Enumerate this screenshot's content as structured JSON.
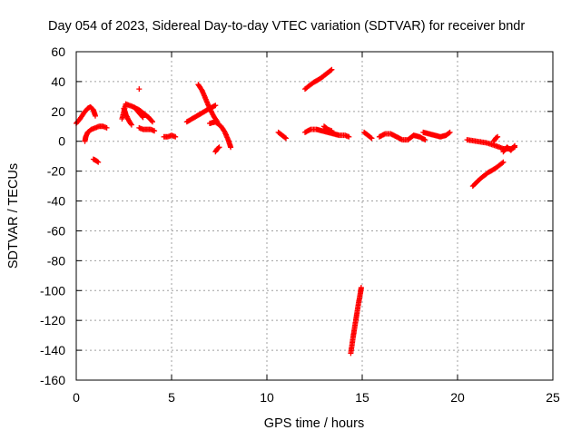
{
  "chart_data": {
    "type": "scatter",
    "title": "Day 054 of 2023, Sidereal Day-to-day VTEC variation (SDTVAR) for receiver bndr",
    "xlabel": "GPS time / hours",
    "ylabel": "SDTVAR / TECUs",
    "xlim": [
      0,
      25
    ],
    "ylim": [
      -160,
      60
    ],
    "xticks": [
      "0",
      "5",
      "10",
      "15",
      "20",
      "25"
    ],
    "yticks": [
      "60",
      "40",
      "20",
      "0",
      "-20",
      "-40",
      "-60",
      "-80",
      "-100",
      "-120",
      "-140",
      "-160"
    ],
    "grid": true,
    "legend": "none",
    "series_color": "#ff0000",
    "series": [
      {
        "x": [
          0.0,
          0.2,
          0.4,
          0.6,
          0.75,
          0.9,
          1.0
        ],
        "y": [
          12,
          15,
          19,
          22,
          23,
          21,
          17
        ]
      },
      {
        "x": [
          0.45,
          0.5,
          0.6,
          0.8,
          1.0,
          1.2,
          1.4,
          1.6
        ],
        "y": [
          0,
          3,
          6,
          8,
          9,
          10,
          10,
          9
        ]
      },
      {
        "x": [
          0.9,
          1.05,
          1.15
        ],
        "y": [
          -12,
          -13,
          -14
        ]
      },
      {
        "x": [
          2.4,
          2.6,
          2.8,
          3.0,
          3.3,
          3.6,
          3.8,
          4.0
        ],
        "y": [
          15,
          25,
          24,
          23,
          21,
          18,
          16,
          13
        ]
      },
      {
        "x": [
          2.5,
          2.6,
          2.75,
          2.9
        ],
        "y": [
          22,
          18,
          14,
          11
        ]
      },
      {
        "x": [
          3.1,
          3.3,
          3.5
        ],
        "y": [
          22,
          19,
          16
        ]
      },
      {
        "x": [
          3.3
        ],
        "y": [
          35
        ]
      },
      {
        "x": [
          3.3,
          3.5,
          3.7,
          3.9,
          4.1
        ],
        "y": [
          9,
          8,
          8,
          8,
          7
        ]
      },
      {
        "x": [
          4.6,
          4.8,
          5.0,
          5.2
        ],
        "y": [
          3,
          3,
          4,
          3
        ]
      },
      {
        "x": [
          5.8,
          6.2,
          6.6,
          7.0,
          7.3
        ],
        "y": [
          13,
          16,
          19,
          22,
          24
        ]
      },
      {
        "x": [
          6.4,
          6.6,
          6.8,
          7.0,
          7.2,
          7.4
        ],
        "y": [
          38,
          34,
          28,
          22,
          17,
          13
        ]
      },
      {
        "x": [
          7.0,
          7.3,
          7.6,
          7.8,
          8.0,
          8.1
        ],
        "y": [
          12,
          13,
          10,
          6,
          0,
          -4
        ]
      },
      {
        "x": [
          7.3,
          7.4,
          7.5
        ],
        "y": [
          -7,
          -5,
          -4
        ]
      },
      {
        "x": [
          10.6,
          10.8,
          11.0
        ],
        "y": [
          6,
          4,
          2
        ]
      },
      {
        "x": [
          12.0,
          12.4,
          12.8,
          13.1,
          13.4
        ],
        "y": [
          35,
          39,
          42,
          45,
          48
        ]
      },
      {
        "x": [
          12.0,
          12.3,
          12.6,
          12.9,
          13.2,
          13.5,
          13.8,
          14.1,
          14.3
        ],
        "y": [
          6,
          8,
          8,
          7,
          6,
          5,
          4,
          4,
          3
        ]
      },
      {
        "x": [
          13.0,
          13.2,
          13.4
        ],
        "y": [
          10,
          8,
          7
        ]
      },
      {
        "x": [
          14.4,
          14.5,
          14.6,
          14.7,
          14.8,
          14.9,
          14.95
        ],
        "y": [
          -142,
          -133,
          -125,
          -117,
          -109,
          -102,
          -98
        ]
      },
      {
        "x": [
          15.1,
          15.3,
          15.5
        ],
        "y": [
          6,
          4,
          2
        ]
      },
      {
        "x": [
          15.9,
          16.2,
          16.5,
          16.8,
          17.1,
          17.4,
          17.7,
          18.0,
          18.3
        ],
        "y": [
          3,
          5,
          5,
          3,
          1,
          1,
          4,
          3,
          1
        ]
      },
      {
        "x": [
          18.2,
          18.5,
          18.8,
          19.1,
          19.4,
          19.6
        ],
        "y": [
          6,
          5,
          4,
          3,
          4,
          6
        ]
      },
      {
        "x": [
          20.5,
          21.0,
          21.5,
          22.0,
          22.4,
          22.8,
          23.0
        ],
        "y": [
          1,
          0,
          -1,
          -3,
          -5,
          -5,
          -4
        ]
      },
      {
        "x": [
          21.9,
          22.0,
          22.1
        ],
        "y": [
          0,
          2,
          3
        ]
      },
      {
        "x": [
          20.8,
          21.2,
          21.6,
          22.0,
          22.4
        ],
        "y": [
          -30,
          -25,
          -21,
          -18,
          -14
        ]
      },
      {
        "x": [
          22.4,
          22.6,
          22.8,
          23.0
        ],
        "y": [
          -7,
          -4,
          -6,
          -3
        ]
      }
    ]
  }
}
